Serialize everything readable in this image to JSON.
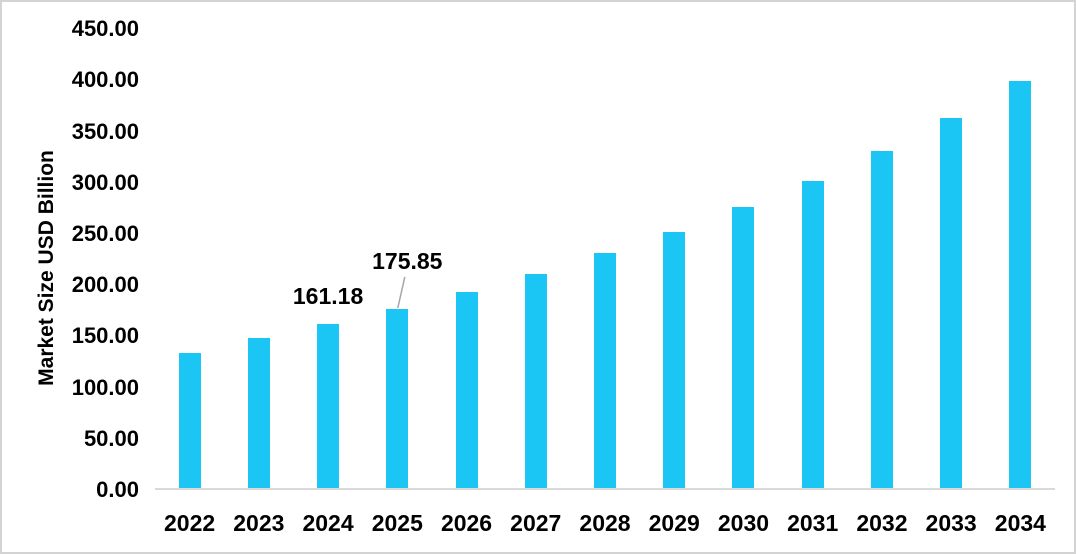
{
  "chart_data": {
    "type": "bar",
    "title": "",
    "xlabel": "",
    "ylabel": "Market Size USD Billion",
    "categories": [
      "2022",
      "2023",
      "2024",
      "2025",
      "2026",
      "2027",
      "2028",
      "2029",
      "2030",
      "2031",
      "2032",
      "2033",
      "2034"
    ],
    "values": [
      133,
      147,
      161.18,
      175.85,
      192,
      210,
      230,
      251,
      275,
      301,
      330,
      362,
      398
    ],
    "ylim": [
      0,
      450
    ],
    "ytick_step": 50,
    "ytick_labels": [
      "0.00",
      "50.00",
      "100.00",
      "150.00",
      "200.00",
      "250.00",
      "300.00",
      "350.00",
      "400.00",
      "450.00"
    ],
    "grid": false,
    "legend": false,
    "annotations": [
      {
        "category": "2024",
        "text": "161.18",
        "leader": false
      },
      {
        "category": "2025",
        "text": "175.85",
        "leader": true
      }
    ],
    "colors": {
      "bar": "#1cc6f4",
      "axis_line": "#d9d9d9",
      "leader_line": "#a6a6a6",
      "text": "#000000",
      "frame_border": "#d3d3d3",
      "background": "#ffffff"
    }
  }
}
